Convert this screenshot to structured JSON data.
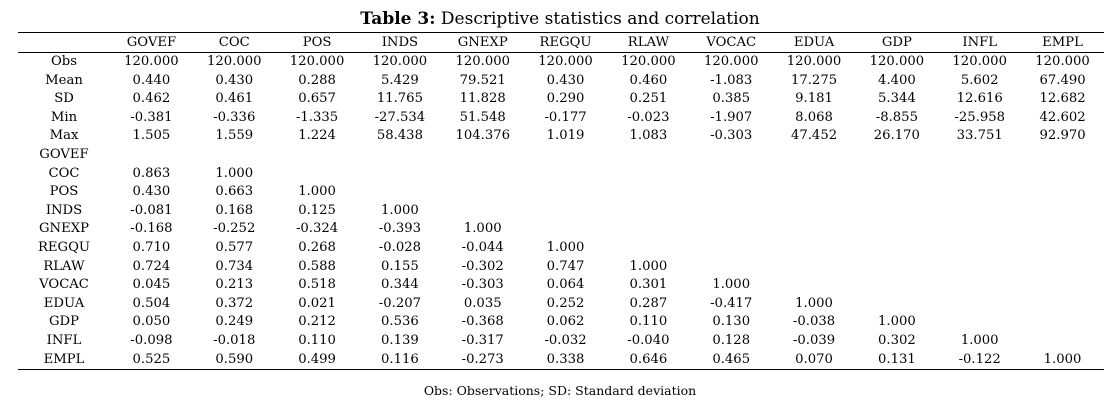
{
  "title": {
    "bold": "Table 3:",
    "rest": " Descriptive statistics and correlation"
  },
  "columns": [
    "",
    "GOVEF",
    "COC",
    "POS",
    "INDS",
    "GNEXP",
    "REGQU",
    "RLAW",
    "VOCAC",
    "EDUA",
    "GDP",
    "INFL",
    "EMPL"
  ],
  "rows": [
    [
      "Obs",
      "120.000",
      "120.000",
      "120.000",
      "120.000",
      "120.000",
      "120.000",
      "120.000",
      "120.000",
      "120.000",
      "120.000",
      "120.000",
      "120.000"
    ],
    [
      "Mean",
      "0.440",
      "0.430",
      "0.288",
      "5.429",
      "79.521",
      "0.430",
      "0.460",
      "-1.083",
      "17.275",
      "4.400",
      "5.602",
      "67.490"
    ],
    [
      "SD",
      "0.462",
      "0.461",
      "0.657",
      "11.765",
      "11.828",
      "0.290",
      "0.251",
      "0.385",
      "9.181",
      "5.344",
      "12.616",
      "12.682"
    ],
    [
      "Min",
      "-0.381",
      "-0.336",
      "-1.335",
      "-27.534",
      "51.548",
      "-0.177",
      "-0.023",
      "-1.907",
      "8.068",
      "-8.855",
      "-25.958",
      "42.602"
    ],
    [
      "Max",
      "1.505",
      "1.559",
      "1.224",
      "58.438",
      "104.376",
      "1.019",
      "1.083",
      "-0.303",
      "47.452",
      "26.170",
      "33.751",
      "92.970"
    ],
    [
      "GOVEF",
      "",
      "",
      "",
      "",
      "",
      "",
      "",
      "",
      "",
      "",
      "",
      ""
    ],
    [
      "COC",
      "0.863",
      "1.000",
      "",
      "",
      "",
      "",
      "",
      "",
      "",
      "",
      "",
      ""
    ],
    [
      "POS",
      "0.430",
      "0.663",
      "1.000",
      "",
      "",
      "",
      "",
      "",
      "",
      "",
      "",
      ""
    ],
    [
      "INDS",
      "-0.081",
      "0.168",
      "0.125",
      "1.000",
      "",
      "",
      "",
      "",
      "",
      "",
      "",
      ""
    ],
    [
      "GNEXP",
      "-0.168",
      "-0.252",
      "-0.324",
      "-0.393",
      "1.000",
      "",
      "",
      "",
      "",
      "",
      "",
      ""
    ],
    [
      "REGQU",
      "0.710",
      "0.577",
      "0.268",
      "-0.028",
      "-0.044",
      "1.000",
      "",
      "",
      "",
      "",
      "",
      ""
    ],
    [
      "RLAW",
      "0.724",
      "0.734",
      "0.588",
      "0.155",
      "-0.302",
      "0.747",
      "1.000",
      "",
      "",
      "",
      "",
      ""
    ],
    [
      "VOCAC",
      "0.045",
      "0.213",
      "0.518",
      "0.344",
      "-0.303",
      "0.064",
      "0.301",
      "1.000",
      "",
      "",
      "",
      ""
    ],
    [
      "EDUA",
      "0.504",
      "0.372",
      "0.021",
      "-0.207",
      "0.035",
      "0.252",
      "0.287",
      "-0.417",
      "1.000",
      "",
      "",
      ""
    ],
    [
      "GDP",
      "0.050",
      "0.249",
      "0.212",
      "0.536",
      "-0.368",
      "0.062",
      "0.110",
      "0.130",
      "-0.038",
      "1.000",
      "",
      ""
    ],
    [
      "INFL",
      "-0.098",
      "-0.018",
      "0.110",
      "0.139",
      "-0.317",
      "-0.032",
      "-0.040",
      "0.128",
      "-0.039",
      "0.302",
      "1.000",
      ""
    ],
    [
      "EMPL",
      "0.525",
      "0.590",
      "0.499",
      "0.116",
      "-0.273",
      "0.338",
      "0.646",
      "0.465",
      "0.070",
      "0.131",
      "-0.122",
      "1.000"
    ]
  ],
  "note": "Obs: Observations; SD: Standard deviation"
}
